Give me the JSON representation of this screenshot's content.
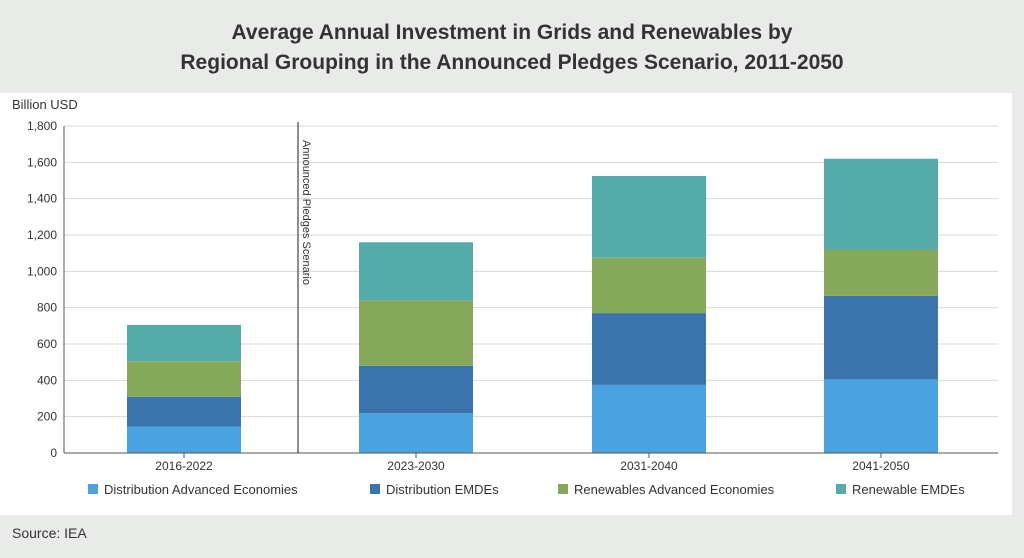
{
  "title": {
    "line1": "Average Annual Investment in Grids and Renewables by",
    "line2": "Regional Grouping in the Announced Pledges Scenario, 2011-2050"
  },
  "source": "Source: IEA",
  "colors": {
    "background": "#e9ebe9",
    "panel": "#ffffff",
    "grid": "#d9d9d9",
    "axis": "#555555",
    "divider": "#444444"
  },
  "chart_data": {
    "type": "bar",
    "stacked": true,
    "title": "Average Annual Investment in Grids and Renewables by Regional Grouping in the Announced Pledges Scenario, 2011-2050",
    "xlabel": "",
    "ylabel": "Billion USD",
    "ylim": [
      0,
      1800
    ],
    "yticks": [
      0,
      200,
      400,
      600,
      800,
      1000,
      1200,
      1400,
      1600,
      1800
    ],
    "ytick_labels": [
      "0",
      "200",
      "400",
      "600",
      "800",
      "1,000",
      "1,200",
      "1,400",
      "1,600",
      "1,800"
    ],
    "grid": true,
    "legend_position": "bottom",
    "categories": [
      "2016-2022",
      "2023-2030",
      "2031-2040",
      "2041-2050"
    ],
    "series": [
      {
        "name": "Distribution Advanced Economies",
        "color": "#4aa3df",
        "values": [
          145,
          220,
          375,
          405
        ]
      },
      {
        "name": "Distribution EMDEs",
        "color": "#3b74ad",
        "values": [
          165,
          260,
          395,
          460
        ]
      },
      {
        "name": "Renewables Advanced Economies",
        "color": "#86a85a",
        "values": [
          195,
          360,
          305,
          255
        ]
      },
      {
        "name": "Renewable EMDEs",
        "color": "#55aaaa",
        "values": [
          200,
          320,
          450,
          500
        ]
      }
    ],
    "annotation": {
      "text": "Announced Pledges Scenario",
      "between_categories": [
        0,
        1
      ]
    }
  }
}
